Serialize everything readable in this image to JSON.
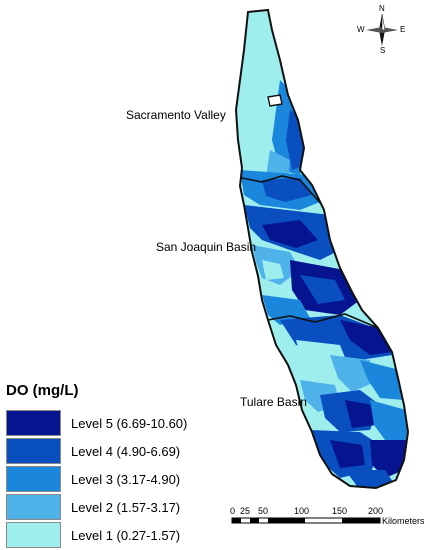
{
  "colors": {
    "level1": "#9eeeee",
    "level2": "#4fb3ea",
    "level3": "#1a86dc",
    "level4": "#0a4fc0",
    "level5": "#06148f",
    "outline": "#111111"
  },
  "regions": {
    "sacramento": "Sacramento Valley",
    "san_joaquin": "San Joaquin Basin",
    "tulare": "Tulare Basin"
  },
  "legend": {
    "title": "DO (mg/L)",
    "items": [
      {
        "label": "Level 5 (6.69-10.60)",
        "color": "#06148f"
      },
      {
        "label": "Level 4 (4.90-6.69)",
        "color": "#0a4fc0"
      },
      {
        "label": "Level 3 (3.17-4.90)",
        "color": "#1a86dc"
      },
      {
        "label": "Level 2 (1.57-3.17)",
        "color": "#4fb3ea"
      },
      {
        "label": "Level 1 (0.27-1.57)",
        "color": "#9eeeee"
      }
    ]
  },
  "compass": {
    "n": "N",
    "s": "S",
    "e": "E",
    "w": "W"
  },
  "scale": {
    "ticks": [
      "0",
      "25",
      "50",
      "100",
      "150",
      "200"
    ],
    "unit": "Kilometers"
  }
}
